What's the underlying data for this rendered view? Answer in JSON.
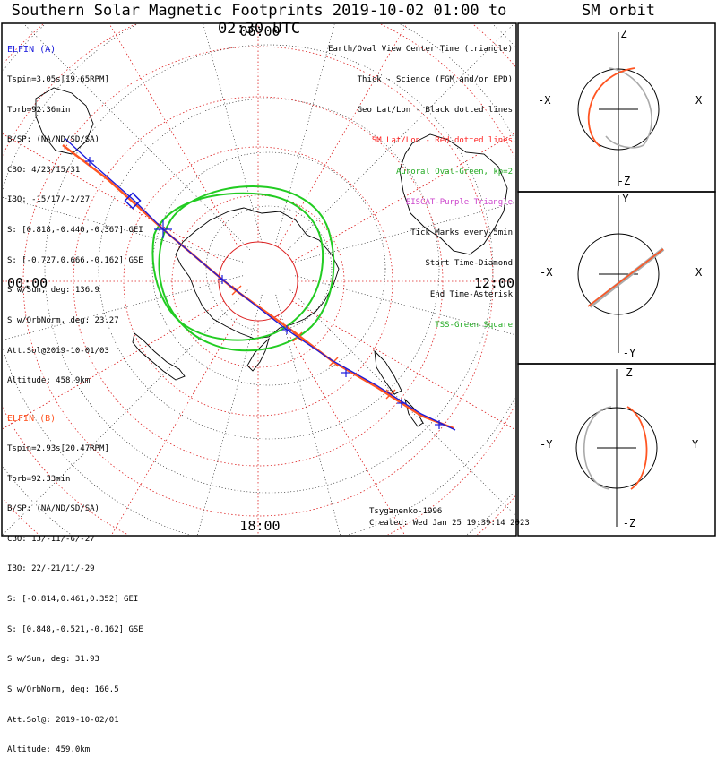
{
  "title": "Southern Solar Magnetic Footprints 2019-10-02 01:00 to 02:30 UTC",
  "orbit_title": "SM orbit",
  "colors": {
    "sc_a": "#1a1adc",
    "sc_b": "#ff5522",
    "oval": "#22cc22",
    "grid_sm": "#dd2222",
    "grid_geo": "#000000",
    "eiscat": "#cc44cc"
  },
  "map_labels": {
    "top": "06:00",
    "left": "00:00",
    "right": "12:00",
    "bottom": "18:00"
  },
  "elfin_a": {
    "name": "ELFIN (A)",
    "lines": [
      "Tspin=3.05s[19.65RPM]",
      "Torb=92.36min",
      "B/SP: (NA/ND/SD/SA)",
      "CBO: 4/23/15/31",
      "IBO: -15/17/-2/27",
      "S: [0.818,-0.440,-0.367] GEI",
      "S: [-0.727,0.666,-0.162] GSE",
      "S w/Sun, deg: 136.9",
      "S w/OrbNorm, deg: 23.27",
      "Att.Sol@2019-10-01/03",
      "Altitude: 458.9km"
    ]
  },
  "elfin_b": {
    "name": "ELFIN (B)",
    "lines": [
      "Tspin=2.93s[20.47RPM]",
      "Torb=92.33min",
      "B/SP: (NA/ND/SD/SA)",
      "CBO: 13/-11/-6/-27",
      "IBO: 22/-21/11/-29",
      "S: [-0.814,0.461,0.352] GEI",
      "S: [0.848,-0.521,-0.162] GSE",
      "S w/Sun, deg: 31.93",
      "S w/OrbNorm, deg: 160.5",
      "Att.Sol@: 2019-10-02/01",
      "Altitude: 459.0km"
    ]
  },
  "legend": [
    {
      "text": "Earth/Oval View Center Time (triangle)",
      "color": "#000000"
    },
    {
      "text": "Thick - Science (FGM and/or EPD)",
      "color": "#000000"
    },
    {
      "text": "Geo Lat/Lon - Black dotted lines",
      "color": "#000000"
    },
    {
      "text": "SM Lat/Lon - Red dotted lines",
      "color": "#ff2222"
    },
    {
      "text": "Auroral Oval-Green, kp=2",
      "color": "#22aa22"
    },
    {
      "text": "EISCAT-Purple Triangle",
      "color": "#cc44cc"
    },
    {
      "text": "Tick Marks every 5min",
      "color": "#000000"
    },
    {
      "text": "Start Time-Diamond",
      "color": "#000000"
    },
    {
      "text": "End Time-Asterisk",
      "color": "#000000"
    },
    {
      "text": "TSS-Green Square",
      "color": "#22aa22"
    }
  ],
  "credit": {
    "author": "Tsyganenko-1996",
    "created": "Created: Wed Jan 25 19:39:14 2023"
  },
  "orbit_panels": [
    {
      "top": "Z",
      "bottom": "-Z",
      "left": "-X",
      "right": "X"
    },
    {
      "top": "Y",
      "bottom": "-Y",
      "left": "-X",
      "right": "X"
    },
    {
      "top": "Z",
      "bottom": "-Z",
      "left": "-Y",
      "right": "Y"
    }
  ]
}
